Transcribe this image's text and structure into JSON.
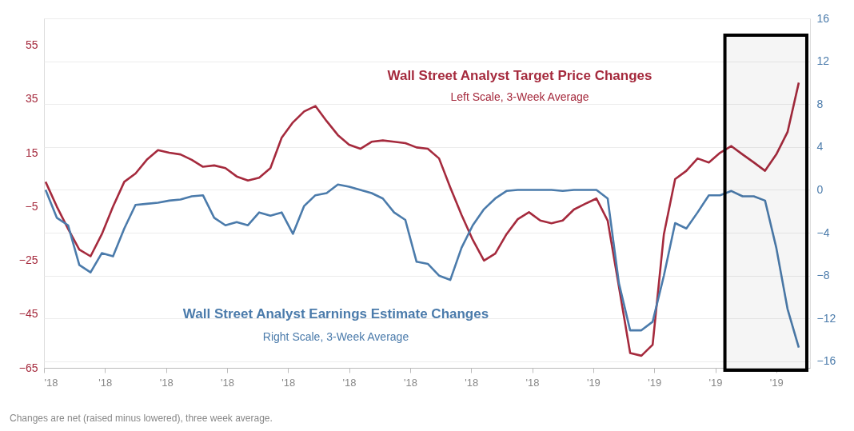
{
  "chart_data": {
    "type": "line",
    "x": [
      "2018-01-05",
      "2018-01-12",
      "2018-01-19",
      "2018-01-26",
      "2018-02-02",
      "2018-02-09",
      "2018-02-16",
      "2018-02-23",
      "2018-03-02",
      "2018-03-09",
      "2018-03-16",
      "2018-03-23",
      "2018-03-30",
      "2018-04-06",
      "2018-04-13",
      "2018-04-20",
      "2018-04-27",
      "2018-05-04",
      "2018-05-11",
      "2018-05-18",
      "2018-05-25",
      "2018-06-01",
      "2018-06-08",
      "2018-06-15",
      "2018-06-22",
      "2018-06-29",
      "2018-07-06",
      "2018-07-13",
      "2018-07-20",
      "2018-07-27",
      "2018-08-03",
      "2018-08-10",
      "2018-08-17",
      "2018-08-24",
      "2018-08-31",
      "2018-09-07",
      "2018-09-14",
      "2018-09-21",
      "2018-09-28",
      "2018-10-05",
      "2018-10-12",
      "2018-10-19",
      "2018-10-26",
      "2018-11-02",
      "2018-11-09",
      "2018-11-16",
      "2018-11-23",
      "2018-11-30",
      "2018-12-07",
      "2018-12-14",
      "2018-12-21",
      "2018-12-28",
      "2019-01-04",
      "2019-01-11",
      "2019-01-18",
      "2019-01-25",
      "2019-02-01",
      "2019-02-08",
      "2019-02-15",
      "2019-02-22",
      "2019-03-01",
      "2019-03-08",
      "2019-03-15",
      "2019-03-22",
      "2019-03-29",
      "2019-04-05",
      "2019-04-12",
      "2019-04-19"
    ],
    "series": [
      {
        "name": "Wall Street Analyst Target Price Changes",
        "color": "#a52a3d",
        "axis": "y",
        "values": [
          4.2,
          -5,
          -13.3,
          -21,
          -23.5,
          -15.3,
          -5,
          4.2,
          7.3,
          12.4,
          16,
          15,
          14.4,
          12.4,
          9.8,
          10.3,
          9.3,
          6.2,
          4.7,
          5.7,
          9.3,
          20.6,
          26.3,
          30.4,
          32.4,
          26.8,
          21.6,
          18,
          16.5,
          19.1,
          19.6,
          19.1,
          18.6,
          17,
          16.5,
          12.9,
          2.1,
          -8.1,
          -17.4,
          -25.1,
          -22.5,
          -15.3,
          -9.7,
          -7.1,
          -10.2,
          -11.2,
          -10.2,
          -6.1,
          -4,
          -2,
          -10.2,
          -34.8,
          -59.5,
          -60.5,
          -56.4,
          -15.3,
          5.2,
          8.3,
          12.9,
          11.4,
          15,
          17.5,
          14.4,
          11.4,
          8.3,
          14.4,
          22.7,
          41.1
        ]
      },
      {
        "name": "Wall Street Analyst Earnings Estimate Changes",
        "color": "#4b7bab",
        "axis": "y2",
        "values": [
          0,
          -2.6,
          -3.3,
          -7,
          -7.7,
          -5.9,
          -6.2,
          -3.6,
          -1.4,
          -1.3,
          -1.2,
          -1,
          -0.9,
          -0.6,
          -0.5,
          -2.6,
          -3.3,
          -3,
          -3.3,
          -2.1,
          -2.4,
          -2.1,
          -4.1,
          -1.5,
          -0.5,
          -0.3,
          0.5,
          0.3,
          0,
          -0.3,
          -0.8,
          -2.1,
          -2.8,
          -6.7,
          -6.9,
          -8,
          -8.4,
          -5.4,
          -3.3,
          -1.8,
          -0.8,
          -0.1,
          0,
          0,
          0,
          0,
          -0.1,
          0,
          0,
          0,
          -0.8,
          -8.7,
          -13.1,
          -13.1,
          -12.3,
          -8,
          -3.1,
          -3.6,
          -2.1,
          -0.5,
          -0.5,
          -0.1,
          -0.6,
          -0.6,
          -1,
          -5.4,
          -11.1,
          -14.7
        ]
      }
    ],
    "xlim": [
      "2018-01-04",
      "2019-04-26"
    ],
    "xticks": [
      {
        "value": "2018-01-04",
        "label": "'18"
      },
      {
        "value": "2018-02-11",
        "label": "'18"
      },
      {
        "value": "2018-03-21",
        "label": "'18"
      },
      {
        "value": "2018-04-28",
        "label": "'18"
      },
      {
        "value": "2018-06-05",
        "label": "'18"
      },
      {
        "value": "2018-07-13",
        "label": "'18"
      },
      {
        "value": "2018-08-20",
        "label": "'18"
      },
      {
        "value": "2018-09-27",
        "label": "'18"
      },
      {
        "value": "2018-11-04",
        "label": "'18"
      },
      {
        "value": "2018-12-12",
        "label": "'19"
      },
      {
        "value": "2019-01-19",
        "label": "'19"
      },
      {
        "value": "2019-02-26",
        "label": "'19"
      },
      {
        "value": "2019-04-05",
        "label": "'19"
      }
    ],
    "ylim": [
      -65,
      65
    ],
    "yticks": [
      -65,
      -45,
      -25,
      -5,
      15,
      35,
      55
    ],
    "y2lim": [
      -16.6,
      16
    ],
    "y2ticks": [
      -16,
      -12,
      -8,
      -4,
      0,
      4,
      8,
      12,
      16
    ],
    "grid": "y2",
    "bands": [
      {
        "axis": "x",
        "from": "2019-03-04",
        "to": "2019-04-24",
        "color": "#000000"
      }
    ],
    "annotations": [
      "Left Scale, 3-Week Average",
      "Right Scale, 3-Week Average",
      "Changes are net (raised minus lowered), three week average."
    ]
  }
}
